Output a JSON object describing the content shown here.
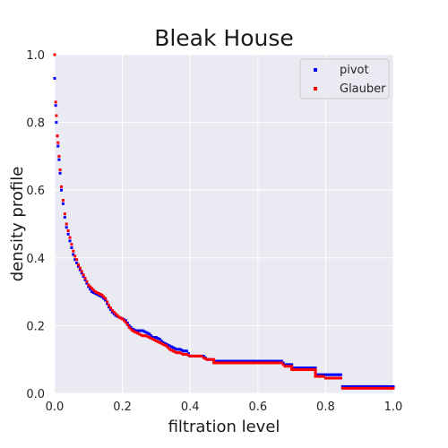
{
  "chart_data": {
    "type": "scatter",
    "title": "Bleak House",
    "xlabel": "filtration level",
    "ylabel": "density profile",
    "xlim": [
      0.0,
      1.0
    ],
    "ylim": [
      0.0,
      1.0
    ],
    "xticks": [
      "0.0",
      "0.2",
      "0.4",
      "0.6",
      "0.8",
      "1.0"
    ],
    "yticks": [
      "0.0",
      "0.2",
      "0.4",
      "0.6",
      "0.8",
      "1.0"
    ],
    "grid": true,
    "legend_position": "top-right",
    "colors": {
      "background": "#eaeaf2",
      "grid": "#ffffff",
      "pivot": "#0000ff",
      "Glauber": "#ff0000"
    },
    "series": [
      {
        "name": "pivot",
        "color": "#0000ff",
        "x": [
          0.0,
          0.003,
          0.005,
          0.008,
          0.01,
          0.013,
          0.016,
          0.02,
          0.025,
          0.03,
          0.035,
          0.04,
          0.045,
          0.05,
          0.055,
          0.06,
          0.065,
          0.07,
          0.075,
          0.08,
          0.085,
          0.09,
          0.095,
          0.1,
          0.11,
          0.12,
          0.13,
          0.14,
          0.15,
          0.16,
          0.17,
          0.18,
          0.19,
          0.2,
          0.21,
          0.22,
          0.23,
          0.24,
          0.25,
          0.26,
          0.27,
          0.28,
          0.29,
          0.3,
          0.31,
          0.32,
          0.33,
          0.34,
          0.35,
          0.36,
          0.37,
          0.38,
          0.39,
          0.4,
          0.42,
          0.44,
          0.45,
          0.47,
          0.5,
          0.55,
          0.6,
          0.65,
          0.67,
          0.68,
          0.7,
          0.72,
          0.75,
          0.77,
          0.8,
          0.83,
          0.845,
          0.85,
          0.87,
          0.9,
          0.95,
          1.0
        ],
        "y": [
          0.93,
          0.85,
          0.8,
          0.76,
          0.73,
          0.69,
          0.65,
          0.6,
          0.56,
          0.52,
          0.49,
          0.47,
          0.45,
          0.43,
          0.41,
          0.395,
          0.385,
          0.375,
          0.365,
          0.355,
          0.345,
          0.335,
          0.325,
          0.315,
          0.3,
          0.295,
          0.29,
          0.285,
          0.275,
          0.255,
          0.24,
          0.23,
          0.225,
          0.22,
          0.215,
          0.2,
          0.19,
          0.185,
          0.185,
          0.185,
          0.18,
          0.175,
          0.165,
          0.165,
          0.16,
          0.15,
          0.145,
          0.14,
          0.135,
          0.13,
          0.13,
          0.125,
          0.125,
          0.11,
          0.11,
          0.11,
          0.1,
          0.095,
          0.095,
          0.095,
          0.095,
          0.095,
          0.095,
          0.085,
          0.075,
          0.075,
          0.075,
          0.055,
          0.055,
          0.055,
          0.055,
          0.02,
          0.02,
          0.02,
          0.02,
          0.02
        ]
      },
      {
        "name": "Glauber",
        "color": "#ff0000",
        "x": [
          0.0,
          0.003,
          0.005,
          0.008,
          0.01,
          0.013,
          0.016,
          0.02,
          0.025,
          0.03,
          0.035,
          0.04,
          0.045,
          0.05,
          0.055,
          0.06,
          0.065,
          0.07,
          0.075,
          0.08,
          0.085,
          0.09,
          0.095,
          0.1,
          0.11,
          0.12,
          0.13,
          0.14,
          0.15,
          0.16,
          0.17,
          0.18,
          0.19,
          0.2,
          0.21,
          0.22,
          0.23,
          0.24,
          0.25,
          0.26,
          0.27,
          0.28,
          0.29,
          0.3,
          0.31,
          0.32,
          0.33,
          0.34,
          0.35,
          0.36,
          0.37,
          0.38,
          0.39,
          0.4,
          0.42,
          0.44,
          0.45,
          0.47,
          0.5,
          0.55,
          0.6,
          0.65,
          0.67,
          0.68,
          0.7,
          0.72,
          0.75,
          0.77,
          0.8,
          0.83,
          0.845,
          0.85,
          0.87,
          0.9,
          0.95,
          1.0
        ],
        "y": [
          1.0,
          0.86,
          0.82,
          0.76,
          0.74,
          0.7,
          0.66,
          0.61,
          0.57,
          0.53,
          0.5,
          0.48,
          0.46,
          0.44,
          0.42,
          0.405,
          0.395,
          0.38,
          0.37,
          0.36,
          0.35,
          0.34,
          0.33,
          0.32,
          0.31,
          0.3,
          0.295,
          0.29,
          0.28,
          0.26,
          0.245,
          0.235,
          0.225,
          0.22,
          0.21,
          0.195,
          0.185,
          0.18,
          0.175,
          0.17,
          0.17,
          0.165,
          0.16,
          0.155,
          0.15,
          0.145,
          0.14,
          0.13,
          0.125,
          0.12,
          0.12,
          0.115,
          0.115,
          0.11,
          0.11,
          0.105,
          0.1,
          0.09,
          0.09,
          0.09,
          0.09,
          0.09,
          0.09,
          0.08,
          0.07,
          0.07,
          0.07,
          0.05,
          0.045,
          0.045,
          0.045,
          0.015,
          0.015,
          0.015,
          0.015,
          0.015
        ]
      }
    ]
  }
}
